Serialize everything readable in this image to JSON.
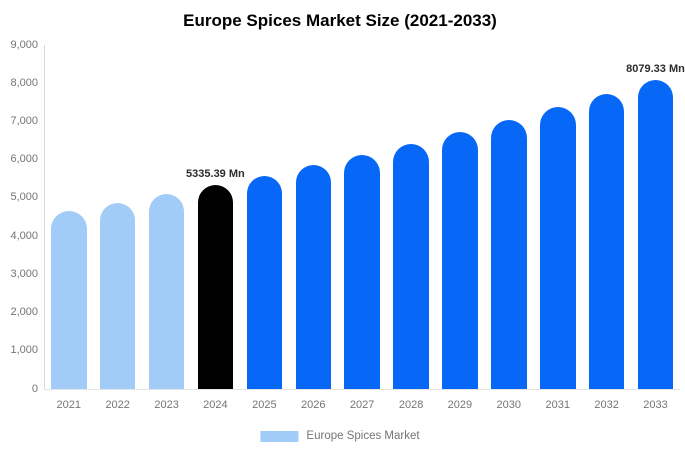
{
  "title": "Europe Spices Market Size (2021-2033)",
  "legend": {
    "label": "Europe Spices Market",
    "swatch_color": "#A2CCF8"
  },
  "colors": {
    "historical_bar": "#A2CCF8",
    "base_year_bar": "#000000",
    "forecast_bar": "#0768F8",
    "axis_text": "#757575",
    "data_label_text": "#2b2b2b"
  },
  "chart_data": {
    "type": "bar",
    "title": "Europe Spices Market Size (2021-2033)",
    "unit": "Mn",
    "categories": [
      "2021",
      "2022",
      "2023",
      "2024",
      "2025",
      "2026",
      "2027",
      "2028",
      "2029",
      "2030",
      "2031",
      "2032",
      "2033"
    ],
    "values": [
      4646,
      4866,
      5095,
      5335.39,
      5587,
      5851,
      6127,
      6416,
      6719,
      7036,
      7368,
      7715,
      8079.33
    ],
    "bar_colors": [
      "#A2CCF8",
      "#A2CCF8",
      "#A2CCF8",
      "#000000",
      "#0768F8",
      "#0768F8",
      "#0768F8",
      "#0768F8",
      "#0768F8",
      "#0768F8",
      "#0768F8",
      "#0768F8",
      "#0768F8"
    ],
    "point_labels": [
      {
        "category": "2024",
        "text": "5335.39 Mn"
      },
      {
        "category": "2033",
        "text": "8079.33 Mn"
      }
    ],
    "xlabel": "",
    "ylabel": "",
    "ylim": [
      0,
      9000
    ],
    "yticks": [
      0,
      1000,
      2000,
      3000,
      4000,
      5000,
      6000,
      7000,
      8000,
      9000
    ],
    "ytick_labels": [
      "0",
      "1,000",
      "2,000",
      "3,000",
      "4,000",
      "5,000",
      "6,000",
      "7,000",
      "8,000",
      "9,000"
    ],
    "legend": [
      "Europe Spices Market"
    ],
    "legend_position": "bottom",
    "grid": false
  }
}
